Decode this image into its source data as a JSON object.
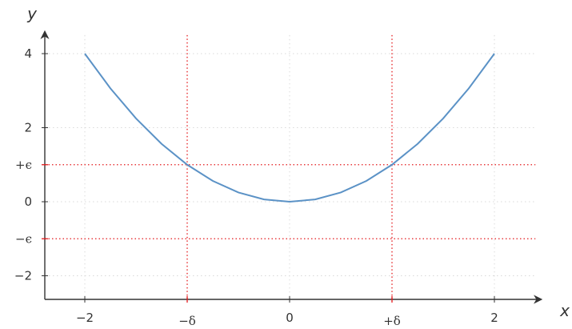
{
  "chart_data": {
    "type": "line",
    "xlabel": "x",
    "ylabel": "y",
    "xlim": [
      -2.5,
      2.4
    ],
    "ylim": [
      -2.6,
      4.5
    ],
    "grid": true,
    "x_ticks": [
      {
        "value": -2,
        "label": "−2"
      },
      {
        "value": 0,
        "label": "0"
      },
      {
        "value": 2,
        "label": "2"
      }
    ],
    "y_ticks": [
      {
        "value": -2,
        "label": "−2"
      },
      {
        "value": 0,
        "label": "0"
      },
      {
        "value": 2,
        "label": "2"
      },
      {
        "value": 4,
        "label": "4"
      }
    ],
    "reference_lines": {
      "vertical": [
        {
          "value": -1,
          "label": "−δ"
        },
        {
          "value": 1,
          "label": "+δ"
        }
      ],
      "horizontal": [
        {
          "value": 1,
          "label": "+ϵ"
        },
        {
          "value": -1,
          "label": "−ϵ"
        }
      ],
      "color": "#e41a1c"
    },
    "series": [
      {
        "color": "#5b92c6",
        "x": [
          -2,
          -1.75,
          -1.5,
          -1.25,
          -1,
          -0.75,
          -0.5,
          -0.25,
          0,
          0.25,
          0.5,
          0.75,
          1,
          1.25,
          1.5,
          1.75,
          2
        ],
        "y": [
          4,
          3.0625,
          2.25,
          1.5625,
          1,
          0.5625,
          0.25,
          0.0625,
          0,
          0.0625,
          0.25,
          0.5625,
          1,
          1.5625,
          2.25,
          3.0625,
          4
        ]
      }
    ]
  }
}
